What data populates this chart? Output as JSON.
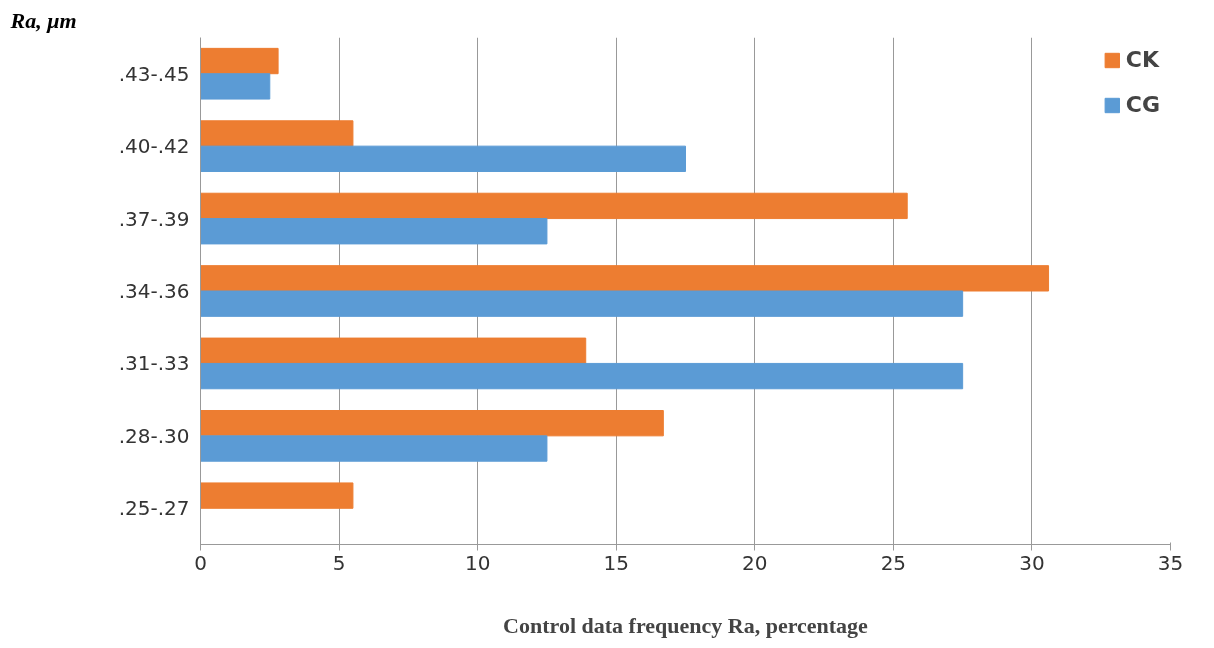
{
  "chart_data": {
    "type": "bar",
    "orientation": "horizontal",
    "xlabel": "Control data frequency Ra, percentage",
    "ylabel": "Ra, μm",
    "categories": [
      ".43-.45",
      ".40-.42",
      ".37-.39",
      ".34-.36",
      ".31-.33",
      ".28-.30",
      ".25-.27"
    ],
    "series": [
      {
        "name": "CK",
        "color": "#ed7d31",
        "values": [
          2.8,
          5.5,
          25.5,
          30.6,
          13.9,
          16.7,
          5.5
        ]
      },
      {
        "name": "CG",
        "color": "#5b9bd5",
        "values": [
          2.5,
          17.5,
          12.5,
          27.5,
          27.5,
          12.5,
          null
        ]
      }
    ],
    "xlim": [
      0,
      35
    ],
    "xticks": [
      0,
      5,
      10,
      15,
      20,
      25,
      30,
      35
    ],
    "grid": "x",
    "legend": "top right"
  }
}
